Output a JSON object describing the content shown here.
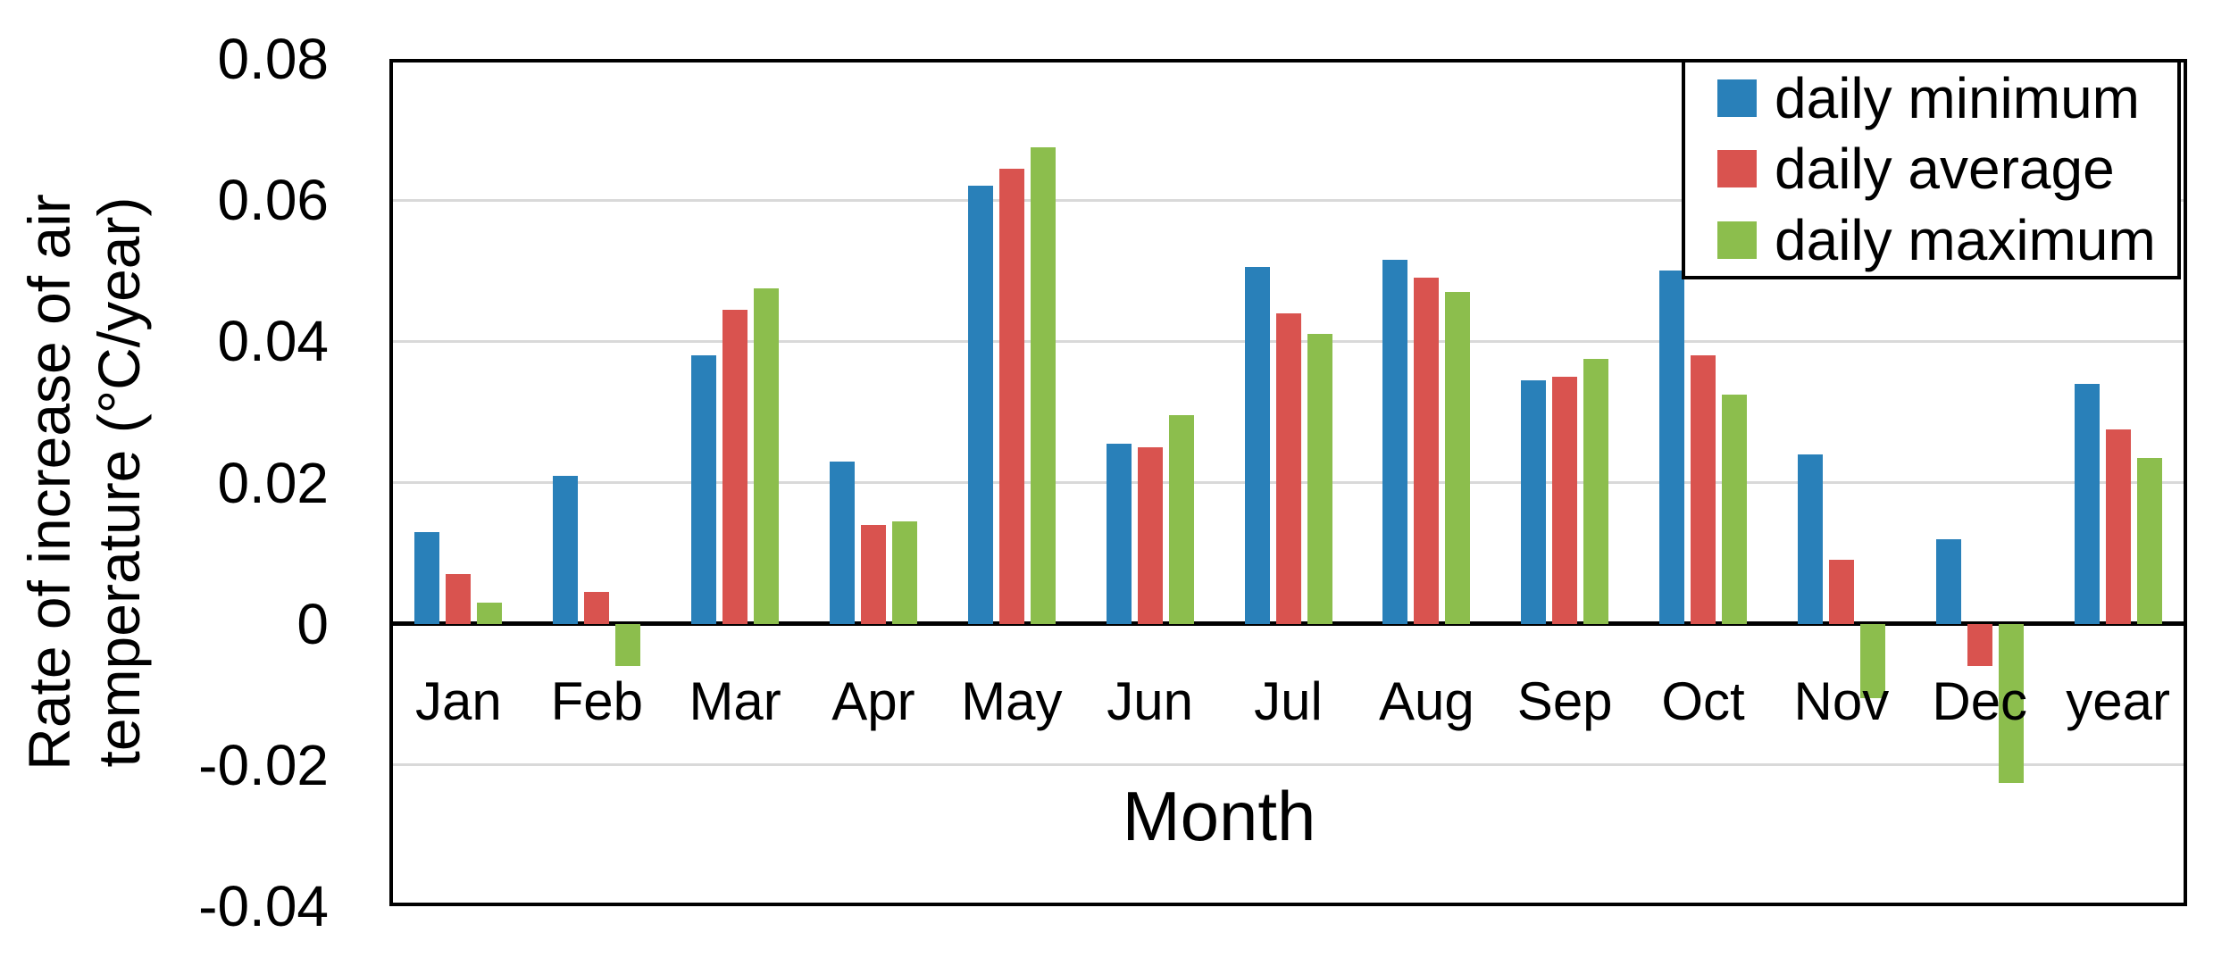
{
  "labels": {
    "ylabel_line1": "Rate of increase of air",
    "ylabel_line2": "temperature (°C/year)"
  },
  "chart_data": {
    "type": "bar",
    "title": "",
    "xlabel": "Month",
    "ylabel": "Rate of increase of air temperature (°C/year)",
    "categories": [
      "Jan",
      "Feb",
      "Mar",
      "Apr",
      "May",
      "Jun",
      "Jul",
      "Aug",
      "Sep",
      "Oct",
      "Nov",
      "Dec",
      "year"
    ],
    "series": [
      {
        "name": "daily minimum",
        "color": "#2980b9",
        "values": [
          0.013,
          0.021,
          0.038,
          0.023,
          0.062,
          0.0255,
          0.0505,
          0.0515,
          0.0345,
          0.05,
          0.024,
          0.012,
          0.034
        ]
      },
      {
        "name": "daily average",
        "color": "#d9534f",
        "values": [
          0.007,
          0.0045,
          0.0445,
          0.014,
          0.0645,
          0.025,
          0.044,
          0.049,
          0.035,
          0.038,
          0.009,
          -0.006,
          0.0275
        ]
      },
      {
        "name": "daily maximum",
        "color": "#8cbe4d",
        "values": [
          0.003,
          -0.006,
          0.0475,
          0.0145,
          0.0675,
          0.0295,
          0.041,
          0.047,
          0.0375,
          0.0325,
          -0.0105,
          -0.0225,
          0.0235
        ]
      }
    ],
    "ylim": [
      -0.04,
      0.08
    ],
    "ytick_step": 0.02,
    "yticks": [
      {
        "value": 0.08,
        "label": "0.08"
      },
      {
        "value": 0.06,
        "label": "0.06"
      },
      {
        "value": 0.04,
        "label": "0.04"
      },
      {
        "value": 0.02,
        "label": "0.02"
      },
      {
        "value": 0,
        "label": "0"
      },
      {
        "value": -0.02,
        "label": "-0.02"
      },
      {
        "value": -0.04,
        "label": "-0.04"
      }
    ],
    "grid": true,
    "legend_position": "top-right"
  },
  "colors": {
    "gridline": "#d9d9d9",
    "axis": "#000000",
    "background": "#ffffff"
  }
}
